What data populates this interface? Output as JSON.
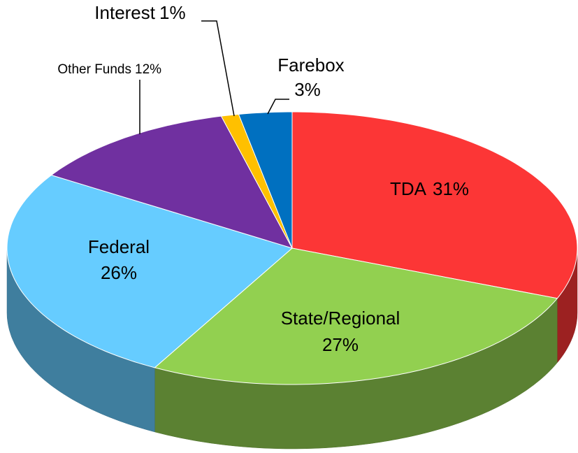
{
  "chart_data": {
    "type": "pie",
    "categories": [
      "TDA",
      "State/Regional",
      "Federal",
      "Other Funds",
      "Interest",
      "Farebox"
    ],
    "values": [
      31,
      27,
      26,
      12,
      1,
      3
    ],
    "value_labels": [
      "31%",
      "27%",
      "26%",
      "12%",
      "1%",
      "3%"
    ],
    "colors": [
      "#fc3636",
      "#92d050",
      "#66ccff",
      "#7030a0",
      "#ffc000",
      "#0070c0"
    ]
  }
}
